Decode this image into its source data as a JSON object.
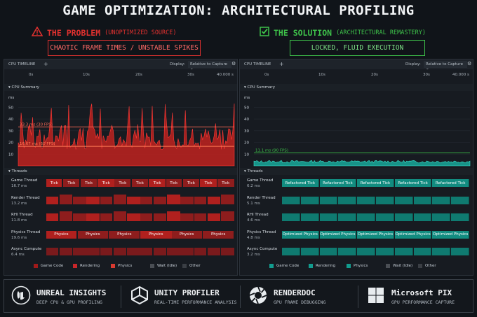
{
  "title": "GAME OPTIMIZATION: ARCHITECTURAL PROFILING",
  "colors": {
    "problem": "#e0312f",
    "solution": "#3ec24a",
    "teal": "#18a89a",
    "red": "#c0221f"
  },
  "problem": {
    "heading": "THE PROBLEM",
    "subheading": "(UNOPTIMIZED SOURCE)",
    "icon": "warning-icon",
    "tag": "CHAOTIC FRAME TIMES / UNSTABLE SPIKES"
  },
  "solution": {
    "heading": "THE SOLUTION",
    "subheading": "(ARCHITECTURAL REMASTERY)",
    "icon": "checkbox-icon",
    "tag": "LOCKED, FLUID EXECUTION"
  },
  "panel_common": {
    "tab": "CPU TIMELINE",
    "plus": "+",
    "display_label": "Display:",
    "display_value": "Relative to Capture",
    "ruler": [
      "0s",
      "10s",
      "20s",
      "30s",
      "40.000 s"
    ],
    "cpu_summary": "CPU Summary",
    "threads_label": "Threads",
    "ms_label": "ms",
    "y_ticks": [
      "50",
      "40",
      "30",
      "20",
      "10"
    ]
  },
  "left_panel": {
    "ref_lines": [
      "33.3 ms (30 FPS)",
      "16.67 ms (60 FPS)"
    ],
    "threads": [
      {
        "name": "Game Thread",
        "value": "16.7 ms",
        "segment": "Tick"
      },
      {
        "name": "Render Thread",
        "value": "13.2 ms",
        "segment": ""
      },
      {
        "name": "RHI Thread",
        "value": "11.8 ms",
        "segment": ""
      },
      {
        "name": "Physics Thread",
        "value": "19.6 ms",
        "segment": "Physics"
      },
      {
        "name": "Async Compute",
        "value": "6.4 ms",
        "segment": ""
      }
    ],
    "legend": [
      "Game Code",
      "Rendering",
      "Physics",
      "Wait (Idle)",
      "Other"
    ]
  },
  "right_panel": {
    "ref_lines": [
      "11.1 ms (90 FPS)"
    ],
    "threads": [
      {
        "name": "Game Thread",
        "value": "6.2 ms",
        "segment": "Refactored Tick"
      },
      {
        "name": "Render Thread",
        "value": "5.1 ms",
        "segment": ""
      },
      {
        "name": "RHI Thread",
        "value": "4.6 ms",
        "segment": ""
      },
      {
        "name": "Physics Thread",
        "value": "4.8 ms",
        "segment": "Optimized Physics"
      },
      {
        "name": "Async Compute",
        "value": "3.2 ms",
        "segment": ""
      }
    ],
    "legend": [
      "Game Code",
      "Rendering",
      "Physics",
      "Wait (Idle)",
      "Other"
    ]
  },
  "tools": [
    {
      "name": "UNREAL INSIGHTS",
      "desc": "DEEP CPU & GPU PROFILING",
      "icon": "unreal-logo-icon"
    },
    {
      "name": "UNITY PROFILER",
      "desc": "REAL-TIME PERFORMANCE ANALYSIS",
      "icon": "unity-logo-icon"
    },
    {
      "name": "RENDERDOC",
      "desc": "GPU FRAME DEBUGGING",
      "icon": "renderdoc-logo-icon"
    },
    {
      "name": "Microsoft PIX",
      "desc": "GPU PERFORMANCE CAPTURE",
      "icon": "windows-logo-icon"
    }
  ]
}
